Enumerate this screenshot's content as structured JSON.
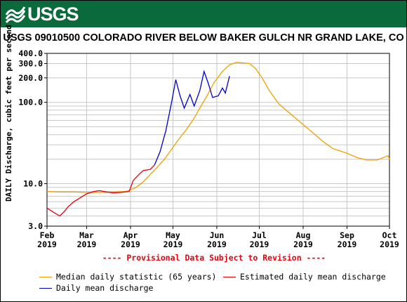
{
  "banner": {
    "logo_text": "USGS",
    "color": "#0a6a3b"
  },
  "page_title": "USGS 09010500 COLORADO RIVER BELOW BAKER GULCH NR GRAND LAKE, CO",
  "provisional_note": "---- Provisional Data Subject to Revision ----",
  "legend": [
    {
      "label": "Median daily statistic (65 years)",
      "color": "#f0a000"
    },
    {
      "label": "Estimated daily mean discharge",
      "color": "#e8000b"
    },
    {
      "label": "Daily mean discharge",
      "color": "#0000cc"
    }
  ],
  "chart_data": {
    "type": "line",
    "title": "USGS 09010500 COLORADO RIVER BELOW BAKER GULCH NR GRAND LAKE, CO",
    "ylabel": "DAILY Discharge, cubic feet per second",
    "xlabel": "",
    "yscale": "log",
    "ylim": [
      3.0,
      400.0
    ],
    "xlim": [
      "2019-02-01",
      "2019-10-01"
    ],
    "yticks": [
      {
        "value": 3.0,
        "label": "3.0"
      },
      {
        "value": 10.0,
        "label": "10.0"
      },
      {
        "value": 100.0,
        "label": "100.0"
      },
      {
        "value": 200.0,
        "label": "200.0"
      },
      {
        "value": 300.0,
        "label": "300.0"
      },
      {
        "value": 400.0,
        "label": "400.0"
      }
    ],
    "xticks": [
      {
        "date": "2019-02-01",
        "month": "Feb",
        "year": "2019"
      },
      {
        "date": "2019-03-01",
        "month": "Mar",
        "year": "2019"
      },
      {
        "date": "2019-04-01",
        "month": "Apr",
        "year": "2019"
      },
      {
        "date": "2019-05-01",
        "month": "May",
        "year": "2019"
      },
      {
        "date": "2019-06-01",
        "month": "Jun",
        "year": "2019"
      },
      {
        "date": "2019-07-01",
        "month": "Jul",
        "year": "2019"
      },
      {
        "date": "2019-08-01",
        "month": "Aug",
        "year": "2019"
      },
      {
        "date": "2019-09-01",
        "month": "Sep",
        "year": "2019"
      },
      {
        "date": "2019-10-01",
        "month": "Oct",
        "year": "2019"
      }
    ],
    "grid": true,
    "legend_position": "bottom",
    "series": [
      {
        "name": "Median daily statistic (65 years)",
        "color": "#f0a000",
        "points": [
          [
            "2019-02-01",
            8.0
          ],
          [
            "2019-02-10",
            7.9
          ],
          [
            "2019-02-20",
            7.9
          ],
          [
            "2019-03-01",
            7.8
          ],
          [
            "2019-03-10",
            7.8
          ],
          [
            "2019-03-20",
            7.9
          ],
          [
            "2019-03-29",
            8.0
          ],
          [
            "2019-04-05",
            9.0
          ],
          [
            "2019-04-10",
            10.5
          ],
          [
            "2019-04-15",
            13.0
          ],
          [
            "2019-04-20",
            16.0
          ],
          [
            "2019-04-25",
            20.0
          ],
          [
            "2019-05-01",
            28.0
          ],
          [
            "2019-05-05",
            35.0
          ],
          [
            "2019-05-10",
            45.0
          ],
          [
            "2019-05-15",
            60.0
          ],
          [
            "2019-05-20",
            85.0
          ],
          [
            "2019-05-25",
            120.0
          ],
          [
            "2019-05-30",
            175.0
          ],
          [
            "2019-06-05",
            240.0
          ],
          [
            "2019-06-10",
            290.0
          ],
          [
            "2019-06-15",
            310.0
          ],
          [
            "2019-06-20",
            305.0
          ],
          [
            "2019-06-24",
            300.0
          ],
          [
            "2019-06-28",
            265.0
          ],
          [
            "2019-07-03",
            200.0
          ],
          [
            "2019-07-08",
            140.0
          ],
          [
            "2019-07-15",
            95.0
          ],
          [
            "2019-07-22",
            75.0
          ],
          [
            "2019-07-31",
            55.0
          ],
          [
            "2019-08-08",
            42.0
          ],
          [
            "2019-08-15",
            33.0
          ],
          [
            "2019-08-22",
            27.0
          ],
          [
            "2019-08-31",
            24.0
          ],
          [
            "2019-09-08",
            21.0
          ],
          [
            "2019-09-15",
            19.5
          ],
          [
            "2019-09-22",
            19.5
          ],
          [
            "2019-09-27",
            21.0
          ],
          [
            "2019-09-30",
            22.0
          ],
          [
            "2019-10-01",
            20.0
          ]
        ]
      },
      {
        "name": "Estimated daily mean discharge",
        "color": "#e8000b",
        "points": [
          [
            "2019-02-01",
            5.0
          ],
          [
            "2019-02-06",
            4.4
          ],
          [
            "2019-02-10",
            4.0
          ],
          [
            "2019-02-13",
            4.5
          ],
          [
            "2019-02-16",
            5.2
          ],
          [
            "2019-02-20",
            6.0
          ],
          [
            "2019-02-25",
            6.8
          ],
          [
            "2019-03-01",
            7.5
          ],
          [
            "2019-03-06",
            8.0
          ],
          [
            "2019-03-10",
            8.2
          ],
          [
            "2019-03-15",
            7.9
          ],
          [
            "2019-03-20",
            7.7
          ],
          [
            "2019-03-25",
            7.8
          ],
          [
            "2019-03-31",
            8.0
          ],
          [
            "2019-04-03",
            11.0
          ],
          [
            "2019-04-07",
            13.0
          ],
          [
            "2019-04-10",
            14.5
          ],
          [
            "2019-04-15",
            15.0
          ],
          [
            "2019-04-18",
            17.0
          ]
        ]
      },
      {
        "name": "Daily mean discharge",
        "color": "#0000cc",
        "points": [
          [
            "2019-04-18",
            17.0
          ],
          [
            "2019-04-22",
            25.0
          ],
          [
            "2019-04-26",
            45.0
          ],
          [
            "2019-04-30",
            100.0
          ],
          [
            "2019-05-03",
            190.0
          ],
          [
            "2019-05-06",
            120.0
          ],
          [
            "2019-05-09",
            85.0
          ],
          [
            "2019-05-13",
            125.0
          ],
          [
            "2019-05-16",
            90.0
          ],
          [
            "2019-05-20",
            140.0
          ],
          [
            "2019-05-23",
            240.0
          ],
          [
            "2019-05-26",
            170.0
          ],
          [
            "2019-05-29",
            115.0
          ],
          [
            "2019-06-02",
            120.0
          ],
          [
            "2019-06-05",
            150.0
          ],
          [
            "2019-06-07",
            130.0
          ],
          [
            "2019-06-10",
            210.0
          ]
        ]
      }
    ]
  }
}
